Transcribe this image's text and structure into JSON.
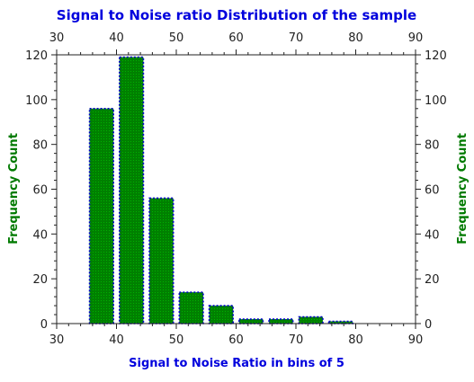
{
  "chart_data": {
    "type": "bar",
    "title": "Signal to Noise ratio Distribution of the sample",
    "xlabel": "Signal to Noise Ratio in bins of 5",
    "ylabel": "Frequency Count",
    "ylabel_right": "Frequency Count",
    "xlim": [
      30,
      90
    ],
    "ylim": [
      0,
      120
    ],
    "x_ticks": [
      30,
      40,
      50,
      60,
      70,
      80,
      90
    ],
    "y_ticks": [
      0,
      20,
      40,
      60,
      80,
      100,
      120
    ],
    "bin_width": 5,
    "bar_width": 4,
    "bins": [
      {
        "center": 37.5,
        "value": 96
      },
      {
        "center": 42.5,
        "value": 119
      },
      {
        "center": 47.5,
        "value": 56
      },
      {
        "center": 52.5,
        "value": 14
      },
      {
        "center": 57.5,
        "value": 8
      },
      {
        "center": 62.5,
        "value": 2
      },
      {
        "center": 67.5,
        "value": 2
      },
      {
        "center": 72.5,
        "value": 3
      },
      {
        "center": 77.5,
        "value": 1
      }
    ],
    "grid": false,
    "legend": "none"
  },
  "colors": {
    "title": "#0000dd",
    "xlabel": "#0000dd",
    "ylabel": "#007a00",
    "bar_fill": "#008000",
    "bar_outline": "#0000cc",
    "bar_pattern_dot": "#00b000",
    "axis": "#222222"
  }
}
